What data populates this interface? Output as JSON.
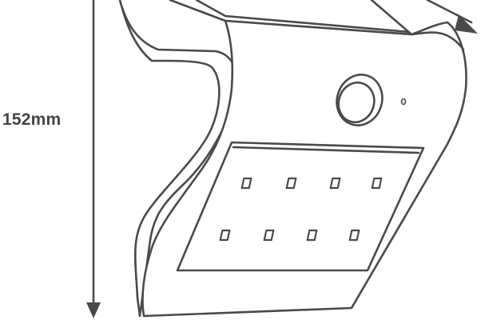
{
  "dimension": {
    "height_label": "152mm"
  },
  "colors": {
    "stroke": "#4a4a4a",
    "fill": "#ffffff"
  },
  "led_grid": {
    "rows": 2,
    "columns": 4
  }
}
